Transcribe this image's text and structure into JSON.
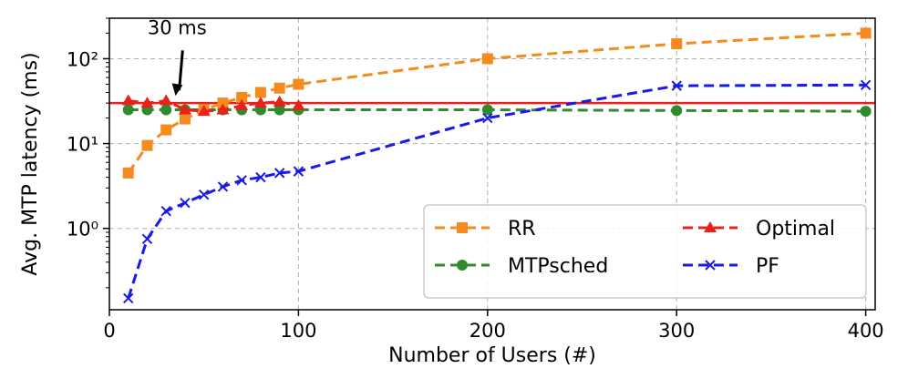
{
  "chart_data": {
    "type": "line",
    "xlabel": "Number of Users (#)",
    "ylabel": "Avg. MTP latency (ms)",
    "x_scale": "linear",
    "y_scale": "log",
    "xlim": [
      0,
      405
    ],
    "ylim": [
      0.11,
      300
    ],
    "x_ticks": [
      0,
      100,
      200,
      300,
      400
    ],
    "x_tick_labels": [
      "0",
      "100",
      "200",
      "300",
      "400"
    ],
    "y_ticks": [
      1,
      10,
      100
    ],
    "y_tick_labels": [
      "10⁰",
      "10¹",
      "10²"
    ],
    "grid": true,
    "legend_position": "lower-right",
    "threshold": {
      "value": 30,
      "color": "#e8211b"
    },
    "annotation": {
      "text": "30 ms",
      "arrow_to_x": 35,
      "arrow_to_y": 30,
      "text_x": 31,
      "text_y": 160
    },
    "series": [
      {
        "name": "RR",
        "color": "#f58a1f",
        "marker": "square",
        "x": [
          10,
          20,
          30,
          40,
          50,
          60,
          70,
          80,
          90,
          100,
          200,
          300,
          400
        ],
        "values": [
          4.5,
          9.5,
          14.5,
          19.5,
          25,
          30,
          35,
          40,
          45,
          50,
          100,
          150,
          200
        ]
      },
      {
        "name": "MTPsched",
        "color": "#2e8b2e",
        "marker": "circle",
        "x": [
          10,
          20,
          30,
          40,
          50,
          60,
          70,
          80,
          90,
          100,
          200,
          300,
          400
        ],
        "values": [
          25,
          25,
          25,
          25,
          25,
          25,
          25,
          25,
          25,
          25,
          25,
          24.5,
          24
        ]
      },
      {
        "name": "Optimal",
        "color": "#e8211b",
        "marker": "triangle",
        "x": [
          10,
          20,
          30,
          40,
          50,
          60,
          70,
          80,
          90,
          100
        ],
        "values": [
          32,
          30,
          32,
          25,
          24,
          25,
          28,
          30,
          31,
          28
        ]
      },
      {
        "name": "PF",
        "color": "#1a1ae6",
        "marker": "x",
        "x": [
          10,
          20,
          30,
          40,
          50,
          60,
          70,
          80,
          90,
          100,
          200,
          300,
          400
        ],
        "values": [
          0.15,
          0.75,
          1.6,
          2.0,
          2.5,
          3.1,
          3.7,
          4.0,
          4.5,
          4.7,
          20,
          48,
          49
        ]
      }
    ]
  }
}
